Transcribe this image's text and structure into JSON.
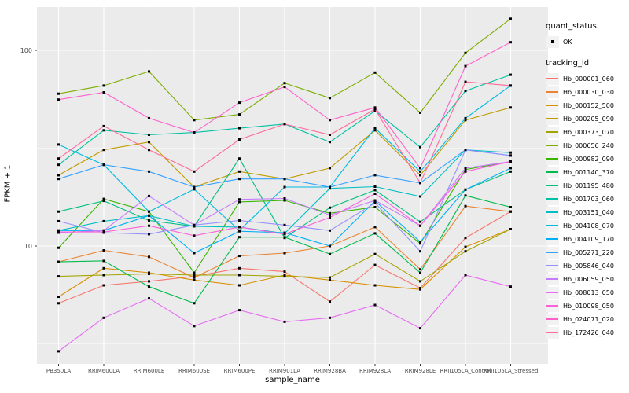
{
  "chart_data": {
    "type": "line",
    "title": "",
    "xlabel": "sample_name",
    "ylabel": "FPKM + 1",
    "y_scale": "log10",
    "y_ticks": [
      100,
      10
    ],
    "y_minor_ticks": [
      31.62,
      3.162
    ],
    "ylim": [
      2.4,
      165
    ],
    "grid": true,
    "panel_bg": "#EBEBEB",
    "grid_color": "#FFFFFF",
    "point_color": "#000000",
    "tick_label_color": "#4D4D4D",
    "categories": [
      "PB350LA",
      "RRIM600LA",
      "RRIM600LE",
      "RRIM600SE",
      "RRIM600PE",
      "RRIM901LA",
      "RRIM928BA",
      "RRIM928LA",
      "RRIM928LE",
      "RRII105LA_Control",
      "RRII105LA_Stressed"
    ],
    "legend": {
      "position": "right",
      "quant_status_title": "quant_status",
      "quant_status_items": [
        "OK"
      ],
      "tracking_id_title": "tracking_id"
    },
    "series": [
      {
        "name": "Hb_000001_060",
        "color": "#F8766D",
        "values": [
          5.1,
          6.3,
          6.6,
          7.0,
          7.7,
          7.4,
          5.2,
          8.0,
          6.1,
          11.0,
          15.0
        ]
      },
      {
        "name": "Hb_000030_030",
        "color": "#EA8331",
        "values": [
          8.3,
          9.5,
          8.8,
          6.9,
          8.9,
          9.2,
          10.0,
          12.5,
          7.6,
          16.0,
          15.0
        ]
      },
      {
        "name": "Hb_000152_500",
        "color": "#D89000",
        "values": [
          5.5,
          7.7,
          7.3,
          6.7,
          6.3,
          7.1,
          6.7,
          6.3,
          6.0,
          9.9,
          12.2
        ]
      },
      {
        "name": "Hb_000205_090",
        "color": "#C09B00",
        "values": [
          23,
          31,
          34,
          20,
          24,
          22,
          25,
          39,
          23,
          44,
          51
        ]
      },
      {
        "name": "Hb_000373_070",
        "color": "#A3A500",
        "values": [
          7.0,
          7.1,
          7.2,
          7.1,
          7.1,
          7.0,
          6.9,
          9.1,
          6.6,
          9.4,
          12.2
        ]
      },
      {
        "name": "Hb_000656_240",
        "color": "#7CAE00",
        "values": [
          60,
          66,
          78,
          44,
          47,
          68,
          57,
          77,
          48,
          97,
          145
        ]
      },
      {
        "name": "Hb_000982_090",
        "color": "#39B600",
        "values": [
          9.8,
          17.4,
          15.0,
          7.3,
          16.8,
          17.1,
          14.7,
          15.8,
          10.3,
          24.6,
          27
        ]
      },
      {
        "name": "Hb_001140_370",
        "color": "#00BB4E",
        "values": [
          8.3,
          8.4,
          6.2,
          5.1,
          11.1,
          11.1,
          9.1,
          11.6,
          7.3,
          18.1,
          15.8
        ]
      },
      {
        "name": "Hb_001195_480",
        "color": "#00BF7D",
        "values": [
          15,
          17,
          13.5,
          12.6,
          28,
          11,
          15.7,
          19.3,
          13.3,
          19.4,
          24
        ]
      },
      {
        "name": "Hb_001703_060",
        "color": "#00C1A3",
        "values": [
          26,
          39,
          37,
          38,
          40,
          42,
          34,
          49,
          32,
          62,
          75
        ]
      },
      {
        "name": "Hb_003151_040",
        "color": "#00BFC4",
        "values": [
          12,
          13.4,
          14.3,
          12.6,
          12.5,
          11.6,
          19.7,
          20.1,
          17.9,
          31,
          30
        ]
      },
      {
        "name": "Hb_004108_070",
        "color": "#00BAE0",
        "values": [
          33,
          26,
          15,
          19.5,
          12,
          20,
          20,
          40,
          24,
          45,
          66
        ]
      },
      {
        "name": "Hb_004109_170",
        "color": "#00B0F6",
        "values": [
          12,
          12,
          14.3,
          9.2,
          11.9,
          11.7,
          10,
          17,
          10.5,
          19.4,
          25
        ]
      },
      {
        "name": "Hb_005271_220",
        "color": "#35A2FF",
        "values": [
          22,
          26,
          24,
          20,
          22,
          22,
          20,
          23,
          21,
          31,
          29
        ]
      },
      {
        "name": "Hb_005846_040",
        "color": "#9590FF",
        "values": [
          13.4,
          11.7,
          11.5,
          12.8,
          13.5,
          12.8,
          12,
          16.6,
          9.4,
          31,
          29
        ]
      },
      {
        "name": "Hb_006059_050",
        "color": "#C77CFF",
        "values": [
          11.7,
          12,
          18,
          12.8,
          17.3,
          17.5,
          14.4,
          17.1,
          12.7,
          25,
          27
        ]
      },
      {
        "name": "Hb_008013_050",
        "color": "#E76BF3",
        "values": [
          2.9,
          4.3,
          5.4,
          3.9,
          4.7,
          4.1,
          4.3,
          5.0,
          3.8,
          7.1,
          6.2
        ]
      },
      {
        "name": "Hb_010098_050",
        "color": "#FA62DB",
        "values": [
          11.8,
          11.8,
          12.7,
          11.3,
          12.5,
          11.5,
          14,
          18.5,
          12.7,
          24,
          27
        ]
      },
      {
        "name": "Hb_024071_020",
        "color": "#FF61CC",
        "values": [
          56,
          61,
          45,
          38,
          54,
          65,
          44,
          51,
          25,
          83,
          110
        ]
      },
      {
        "name": "Hb_172426_040",
        "color": "#FF6A98",
        "values": [
          28,
          41,
          31,
          24,
          35,
          42,
          37,
          50,
          21,
          69,
          66
        ]
      }
    ]
  }
}
